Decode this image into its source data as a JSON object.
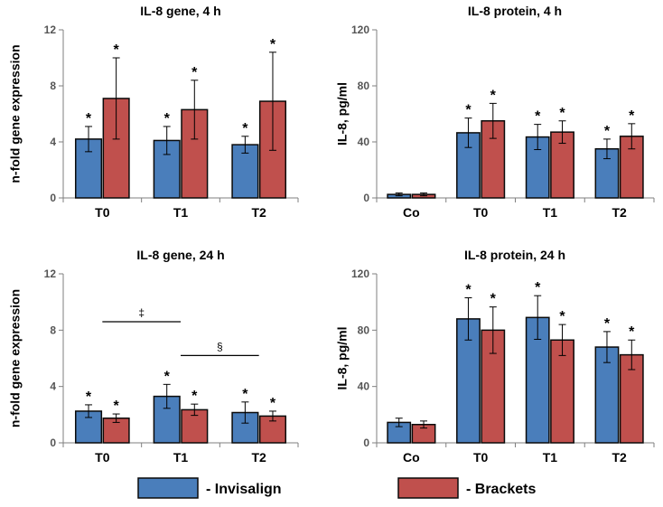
{
  "chart_data": [
    {
      "id": "p1",
      "type": "bar",
      "title": "IL-8 gene, 4 h",
      "ylabel": "n-fold gene expression",
      "xlabel": "",
      "categories": [
        "T0",
        "T1",
        "T2"
      ],
      "ylim": [
        0,
        12
      ],
      "yticks": [
        0,
        4,
        8,
        12
      ],
      "series": [
        {
          "name": "Invisalign",
          "values": [
            4.2,
            4.1,
            3.8
          ],
          "errors": [
            0.9,
            1.0,
            0.6
          ],
          "marks": [
            "*",
            "*",
            "*"
          ]
        },
        {
          "name": "Brackets",
          "values": [
            7.1,
            6.3,
            6.9
          ],
          "errors": [
            2.9,
            2.1,
            3.5
          ],
          "marks": [
            "*",
            "*",
            "*"
          ]
        }
      ],
      "annotations": []
    },
    {
      "id": "p2",
      "type": "bar",
      "title": "IL-8 protein, 4 h",
      "ylabel": "IL-8, pg/ml",
      "xlabel": "",
      "categories": [
        "Co",
        "T0",
        "T1",
        "T2"
      ],
      "ylim": [
        0,
        120
      ],
      "yticks": [
        0,
        40,
        80,
        120
      ],
      "series": [
        {
          "name": "Invisalign",
          "values": [
            2.5,
            46.5,
            43.5,
            35
          ],
          "errors": [
            1,
            10.5,
            9,
            7
          ],
          "marks": [
            "",
            "*",
            "*",
            "*"
          ]
        },
        {
          "name": "Brackets",
          "values": [
            2.5,
            55,
            47,
            44
          ],
          "errors": [
            1,
            12.5,
            8,
            9
          ],
          "marks": [
            "",
            "*",
            "*",
            "*"
          ]
        }
      ],
      "annotations": []
    },
    {
      "id": "p3",
      "type": "bar",
      "title": "IL-8 gene, 24 h",
      "ylabel": "n-fold gene expression",
      "xlabel": "",
      "categories": [
        "T0",
        "T1",
        "T2"
      ],
      "ylim": [
        0,
        12
      ],
      "yticks": [
        0,
        4,
        8,
        12
      ],
      "series": [
        {
          "name": "Invisalign",
          "values": [
            2.25,
            3.3,
            2.15
          ],
          "errors": [
            0.45,
            0.85,
            0.75
          ],
          "marks": [
            "*",
            "*",
            "*"
          ]
        },
        {
          "name": "Brackets",
          "values": [
            1.75,
            2.35,
            1.9
          ],
          "errors": [
            0.3,
            0.4,
            0.35
          ],
          "marks": [
            "*",
            "*",
            "*"
          ]
        }
      ],
      "annotations": [
        {
          "label": "‡",
          "from_category": 0,
          "to_category": 1,
          "y": 8.6
        },
        {
          "label": "§",
          "from_category": 1,
          "to_category": 2,
          "y": 6.2
        }
      ]
    },
    {
      "id": "p4",
      "type": "bar",
      "title": "IL-8 protein, 24 h",
      "ylabel": "IL-8, pg/ml",
      "xlabel": "",
      "categories": [
        "Co",
        "T0",
        "T1",
        "T2"
      ],
      "ylim": [
        0,
        120
      ],
      "yticks": [
        0,
        40,
        80,
        120
      ],
      "series": [
        {
          "name": "Invisalign",
          "values": [
            14.5,
            88,
            89,
            68
          ],
          "errors": [
            3,
            15,
            15.5,
            11
          ],
          "marks": [
            "",
            "*",
            "*",
            "*"
          ]
        },
        {
          "name": "Brackets",
          "values": [
            13,
            80,
            73,
            62.5
          ],
          "errors": [
            2.5,
            16.5,
            11,
            10.5
          ],
          "marks": [
            "",
            "*",
            "*",
            "*"
          ]
        }
      ],
      "annotations": []
    }
  ],
  "legend": [
    {
      "label": "- Invisalign",
      "color": "#4a7ebb"
    },
    {
      "label": "- Brackets",
      "color": "#c0504d"
    }
  ],
  "colors": {
    "invisalign_fill": "#4a7ebb",
    "brackets_fill": "#c0504d",
    "bar_edge": "#0a0a0a",
    "axis": "#7f7f7f"
  }
}
